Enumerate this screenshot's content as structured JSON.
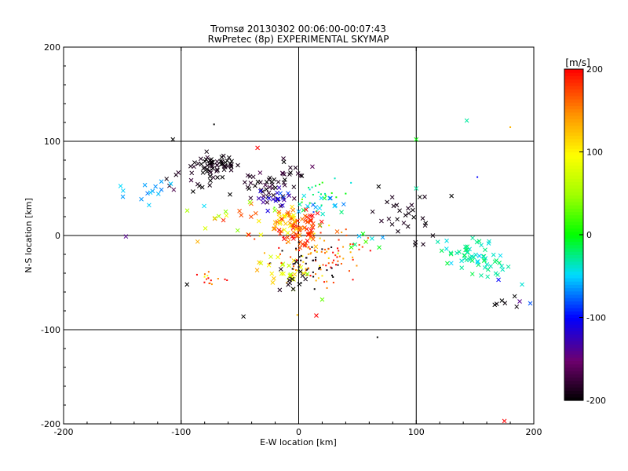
{
  "chart_data": {
    "type": "scatter",
    "title": "Tromsø 20130302 00:06:00-00:07:43",
    "subtitle": "RwPretec (8p) EXPERIMENTAL SKYMAP",
    "xlabel": "E-W location [km]",
    "ylabel": "N-S location [km]",
    "xlim": [
      -200,
      200
    ],
    "ylim": [
      -200,
      200
    ],
    "xticks": [
      "-200",
      "-100",
      "0",
      "100",
      "200"
    ],
    "yticks": [
      "-200",
      "-100",
      "0",
      "100",
      "200"
    ],
    "grid_lines": [
      -100,
      0,
      100
    ],
    "colorbar": {
      "label": "[m/s]",
      "range": [
        -200,
        200
      ],
      "ticks": [
        "-200",
        "-100",
        "0",
        "100",
        "200"
      ],
      "colormap": "rainbow black-purple-blue-cyan-green-yellow-orange-red"
    },
    "clusters": [
      {
        "cx": -72,
        "cy": 74,
        "sx": 10,
        "sy": 6,
        "n": 60,
        "v": -195,
        "vs": 6,
        "mark": "x"
      },
      {
        "cx": -95,
        "cy": 58,
        "sx": 10,
        "sy": 8,
        "n": 12,
        "v": -190,
        "vs": 10,
        "mark": "x"
      },
      {
        "cx": -130,
        "cy": 46,
        "sx": 14,
        "sy": 6,
        "n": 14,
        "v": -60,
        "vs": 8,
        "mark": "x"
      },
      {
        "cx": -28,
        "cy": 52,
        "sx": 14,
        "sy": 10,
        "n": 40,
        "v": -185,
        "vs": 12,
        "mark": "x"
      },
      {
        "cx": -18,
        "cy": 40,
        "sx": 8,
        "sy": 6,
        "n": 18,
        "v": -120,
        "vs": 15,
        "mark": "x"
      },
      {
        "cx": -5,
        "cy": 65,
        "sx": 10,
        "sy": 8,
        "n": 14,
        "v": -190,
        "vs": 10,
        "mark": "x"
      },
      {
        "cx": 20,
        "cy": 42,
        "sx": 12,
        "sy": 8,
        "n": 25,
        "v": -10,
        "vs": 25,
        "mark": "dot"
      },
      {
        "cx": 22,
        "cy": 32,
        "sx": 10,
        "sy": 8,
        "n": 18,
        "v": -50,
        "vs": 20,
        "mark": "x"
      },
      {
        "cx": 0,
        "cy": 8,
        "sx": 10,
        "sy": 10,
        "n": 70,
        "v": 175,
        "vs": 25,
        "mark": "x"
      },
      {
        "cx": -14,
        "cy": 16,
        "sx": 8,
        "sy": 6,
        "n": 30,
        "v": 120,
        "vs": 30,
        "mark": "x"
      },
      {
        "cx": 8,
        "cy": -20,
        "sx": 16,
        "sy": 16,
        "n": 60,
        "v": 160,
        "vs": 40,
        "mark": "dot"
      },
      {
        "cx": 5,
        "cy": -30,
        "sx": 14,
        "sy": 12,
        "n": 40,
        "v": -195,
        "vs": 5,
        "mark": "dot"
      },
      {
        "cx": -10,
        "cy": -40,
        "sx": 14,
        "sy": 10,
        "n": 25,
        "v": 90,
        "vs": 40,
        "mark": "x"
      },
      {
        "cx": -2,
        "cy": -45,
        "sx": 10,
        "sy": 8,
        "n": 12,
        "v": -195,
        "vs": 5,
        "mark": "x"
      },
      {
        "cx": 30,
        "cy": -15,
        "sx": 18,
        "sy": 12,
        "n": 40,
        "v": 170,
        "vs": 30,
        "mark": "dot"
      },
      {
        "cx": -60,
        "cy": 20,
        "sx": 18,
        "sy": 14,
        "n": 20,
        "v": 110,
        "vs": 60,
        "mark": "x"
      },
      {
        "cx": -75,
        "cy": -48,
        "sx": 6,
        "sy": 4,
        "n": 15,
        "v": 140,
        "vs": 50,
        "mark": "dot"
      },
      {
        "cx": 85,
        "cy": 30,
        "sx": 12,
        "sy": 10,
        "n": 18,
        "v": -195,
        "vs": 5,
        "mark": "x"
      },
      {
        "cx": 100,
        "cy": 5,
        "sx": 8,
        "sy": 10,
        "n": 10,
        "v": -195,
        "vs": 5,
        "mark": "x"
      },
      {
        "cx": 145,
        "cy": -20,
        "sx": 12,
        "sy": 10,
        "n": 50,
        "v": -30,
        "vs": 12,
        "mark": "x"
      },
      {
        "cx": 165,
        "cy": -35,
        "sx": 8,
        "sy": 6,
        "n": 12,
        "v": -35,
        "vs": 12,
        "mark": "x"
      },
      {
        "cx": 175,
        "cy": -70,
        "sx": 8,
        "sy": 4,
        "n": 6,
        "v": -195,
        "vs": 5,
        "mark": "x"
      },
      {
        "cx": 55,
        "cy": -5,
        "sx": 8,
        "sy": 6,
        "n": 8,
        "v": -10,
        "vs": 20,
        "mark": "x"
      }
    ],
    "points": [
      {
        "x": -107,
        "y": 102,
        "v": -200,
        "mark": "x"
      },
      {
        "x": -72,
        "y": 118,
        "v": -200,
        "mark": "dot"
      },
      {
        "x": -35,
        "y": 93,
        "v": 200,
        "mark": "x"
      },
      {
        "x": 100,
        "y": 102,
        "v": 0,
        "mark": "x"
      },
      {
        "x": 143,
        "y": 122,
        "v": -30,
        "mark": "x"
      },
      {
        "x": 180,
        "y": 115,
        "v": 130,
        "mark": "dot"
      },
      {
        "x": 152,
        "y": 62,
        "v": -100,
        "mark": "dot"
      },
      {
        "x": -147,
        "y": -1,
        "v": -140,
        "mark": "x"
      },
      {
        "x": -95,
        "y": -52,
        "v": -200,
        "mark": "x"
      },
      {
        "x": -47,
        "y": -86,
        "v": -200,
        "mark": "x"
      },
      {
        "x": 15,
        "y": -85,
        "v": 200,
        "mark": "x"
      },
      {
        "x": 67,
        "y": -108,
        "v": -200,
        "mark": "dot"
      },
      {
        "x": 175,
        "y": -197,
        "v": 200,
        "mark": "x"
      },
      {
        "x": 197,
        "y": -72,
        "v": -80,
        "mark": "x"
      },
      {
        "x": 188,
        "y": -70,
        "v": -140,
        "mark": "x"
      },
      {
        "x": 170,
        "y": -47,
        "v": -100,
        "mark": "x"
      },
      {
        "x": 190,
        "y": -52,
        "v": -40,
        "mark": "x"
      },
      {
        "x": 100,
        "y": 50,
        "v": -30,
        "mark": "x"
      },
      {
        "x": 68,
        "y": 52,
        "v": -200,
        "mark": "x"
      },
      {
        "x": 130,
        "y": 42,
        "v": -200,
        "mark": "x"
      },
      {
        "x": 20,
        "y": -68,
        "v": 30,
        "mark": "x"
      }
    ]
  }
}
